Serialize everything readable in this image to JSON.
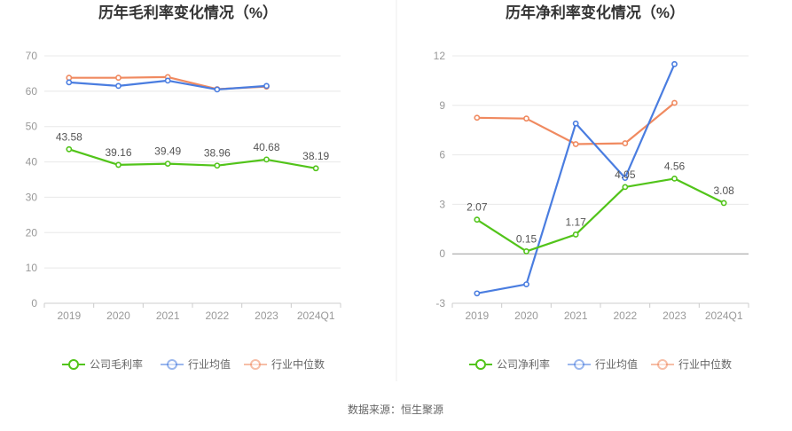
{
  "source": "数据来源：恒生聚源",
  "chart_data": [
    {
      "type": "line",
      "title": "历年毛利率变化情况（%）",
      "categories": [
        "2019",
        "2020",
        "2021",
        "2022",
        "2023",
        "2024Q1"
      ],
      "ylim": [
        0,
        70
      ],
      "yticks": [
        "0",
        "10",
        "20",
        "30",
        "40",
        "50",
        "60",
        "70"
      ],
      "grid": true,
      "legend_position": "bottom",
      "series": [
        {
          "name": "公司毛利率",
          "color": "#52c41a",
          "values": [
            43.58,
            39.16,
            39.49,
            38.96,
            40.68,
            38.19
          ],
          "labels": [
            "43.58",
            "39.16",
            "39.49",
            "38.96",
            "40.68",
            "38.19"
          ]
        },
        {
          "name": "行业均值",
          "color": "#4a7de0",
          "values": [
            62.5,
            61.5,
            63.0,
            60.5,
            61.5,
            null
          ]
        },
        {
          "name": "行业中位数",
          "color": "#f08a60",
          "values": [
            63.8,
            63.8,
            64.0,
            60.6,
            61.3,
            null
          ]
        }
      ]
    },
    {
      "type": "line",
      "title": "历年净利率变化情况（%）",
      "categories": [
        "2019",
        "2020",
        "2021",
        "2022",
        "2023",
        "2024Q1"
      ],
      "ylim": [
        -3,
        12
      ],
      "yticks": [
        "-3",
        "0",
        "3",
        "6",
        "9",
        "12"
      ],
      "grid": true,
      "legend_position": "bottom",
      "series": [
        {
          "name": "公司净利率",
          "color": "#52c41a",
          "values": [
            2.07,
            0.15,
            1.17,
            4.05,
            4.56,
            3.08
          ],
          "labels": [
            "2.07",
            "0.15",
            "1.17",
            "4.05",
            "4.56",
            "3.08"
          ]
        },
        {
          "name": "行业均值",
          "color": "#4a7de0",
          "values": [
            -2.4,
            -1.85,
            7.9,
            4.6,
            11.5,
            null
          ]
        },
        {
          "name": "行业中位数",
          "color": "#f08a60",
          "values": [
            8.25,
            8.2,
            6.65,
            6.7,
            9.15,
            null
          ]
        }
      ]
    }
  ]
}
